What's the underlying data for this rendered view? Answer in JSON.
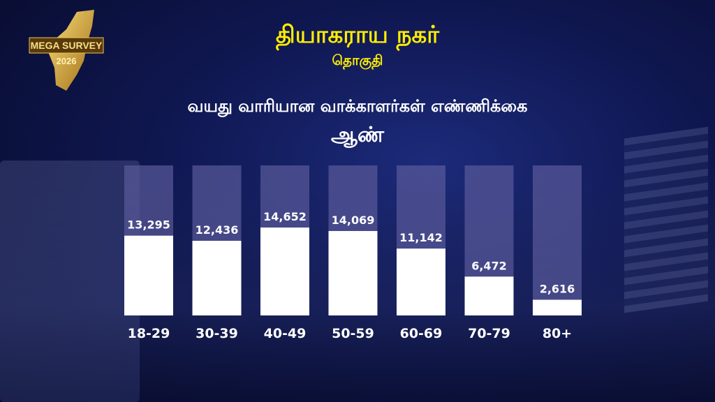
{
  "header": {
    "logo_text": "MEGA SURVEY 2026",
    "constituency": "தியாகராய நகர்",
    "constituency_suffix": "தொகுதி",
    "subtitle": "வயது வாரியான வாக்காளர்கள் எண்ணிக்கை",
    "gender": "ஆண்"
  },
  "chart_data": {
    "type": "bar",
    "title": "வயது வாரியான வாக்காளர்கள் எண்ணிக்கை - ஆண்",
    "categories": [
      "18-29",
      "30-39",
      "40-49",
      "50-59",
      "60-69",
      "70-79",
      "80+"
    ],
    "values": [
      13295,
      12436,
      14652,
      14069,
      11142,
      6472,
      2616
    ],
    "value_labels": [
      "13,295",
      "12,436",
      "14,652",
      "14,069",
      "11,142",
      "6,472",
      "2,616"
    ],
    "xlabel": "",
    "ylabel": "",
    "ylim": [
      0,
      27000
    ],
    "grid": false,
    "colors": {
      "fill": "#ffffff",
      "track": "#5a5a9a"
    }
  }
}
